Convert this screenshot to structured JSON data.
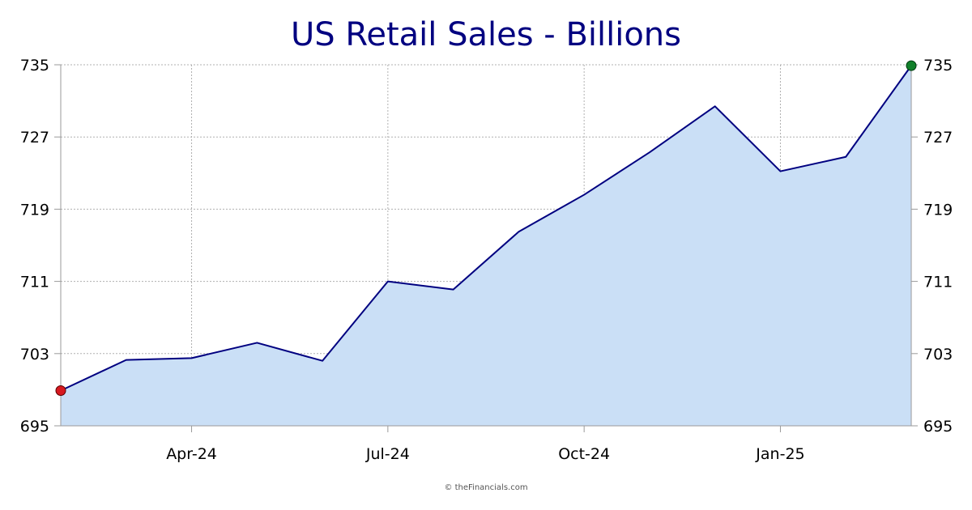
{
  "chart_data": {
    "type": "area",
    "title": "US Retail Sales - Billions",
    "xlabel": "",
    "ylabel": "",
    "x": [
      "2024-02",
      "2024-03",
      "2024-04",
      "2024-05",
      "2024-06",
      "2024-07",
      "2024-08",
      "2024-09",
      "2024-10",
      "2024-11",
      "2024-12",
      "2025-01",
      "2025-02",
      "2025-03"
    ],
    "values": [
      698.9,
      702.3,
      702.5,
      704.2,
      702.2,
      711.0,
      710.1,
      716.5,
      720.6,
      725.3,
      730.4,
      723.2,
      724.8,
      734.9
    ],
    "x_tick_labels": [
      "Apr-24",
      "Jul-24",
      "Oct-24",
      "Jan-25"
    ],
    "x_tick_positions": [
      "2024-04",
      "2024-07",
      "2024-10",
      "2025-01"
    ],
    "y_ticks": [
      "695",
      "703",
      "711",
      "719",
      "727",
      "735"
    ],
    "y_tick_values": [
      695,
      703,
      711,
      719,
      727,
      735
    ],
    "ylim": [
      695,
      735
    ],
    "grid": true,
    "y_axis_sides": "both",
    "colors": {
      "line": "#000080",
      "fill": "#cadff6",
      "grid": "#b0b0b0",
      "axis": "#9a9a9a",
      "title": "#000080",
      "start_marker": "#d71920",
      "end_marker": "#11802a"
    }
  },
  "footer": {
    "copyright": "© theFinancials.com"
  }
}
